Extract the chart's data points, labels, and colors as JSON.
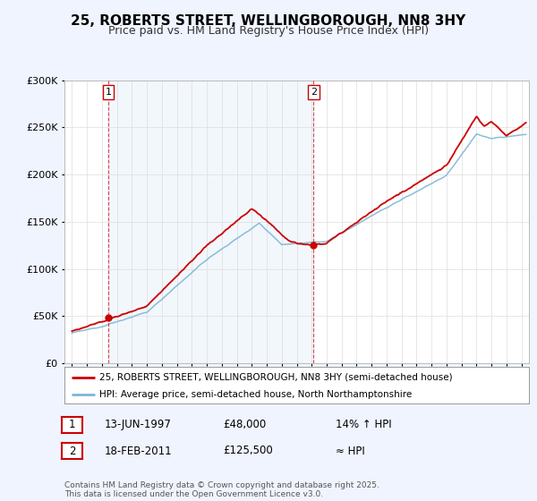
{
  "title": "25, ROBERTS STREET, WELLINGBOROUGH, NN8 3HY",
  "subtitle": "Price paid vs. HM Land Registry's House Price Index (HPI)",
  "legend_line1": "25, ROBERTS STREET, WELLINGBOROUGH, NN8 3HY (semi-detached house)",
  "legend_line2": "HPI: Average price, semi-detached house, North Northamptonshire",
  "annotation1_date": "13-JUN-1997",
  "annotation1_price": "£48,000",
  "annotation1_hpi": "14% ↑ HPI",
  "annotation2_date": "18-FEB-2011",
  "annotation2_price": "£125,500",
  "annotation2_hpi": "≈ HPI",
  "footnote": "Contains HM Land Registry data © Crown copyright and database right 2025.\nThis data is licensed under the Open Government Licence v3.0.",
  "bg_color": "#f0f4ff",
  "plot_bg_color": "#ffffff",
  "line1_color": "#cc0000",
  "line2_color": "#7eb6d4",
  "marker1_x": 1997.44,
  "marker1_y": 48000,
  "marker2_x": 2011.12,
  "marker2_y": 125500,
  "vline1_x": 1997.44,
  "vline2_x": 2011.12,
  "ylim": [
    0,
    300000
  ],
  "xlim": [
    1994.5,
    2025.5
  ],
  "yticks": [
    0,
    50000,
    100000,
    150000,
    200000,
    250000,
    300000
  ],
  "ytick_labels": [
    "£0",
    "£50K",
    "£100K",
    "£150K",
    "£200K",
    "£250K",
    "£300K"
  ],
  "xticks": [
    1995,
    1996,
    1997,
    1998,
    1999,
    2000,
    2001,
    2002,
    2003,
    2004,
    2005,
    2006,
    2007,
    2008,
    2009,
    2010,
    2011,
    2012,
    2013,
    2014,
    2015,
    2016,
    2017,
    2018,
    2019,
    2020,
    2021,
    2022,
    2023,
    2024,
    2025
  ],
  "title_fontsize": 11,
  "subtitle_fontsize": 9,
  "tick_fontsize": 8,
  "legend_fontsize": 7.5,
  "annot_fontsize": 8.5,
  "footnote_fontsize": 6.5
}
